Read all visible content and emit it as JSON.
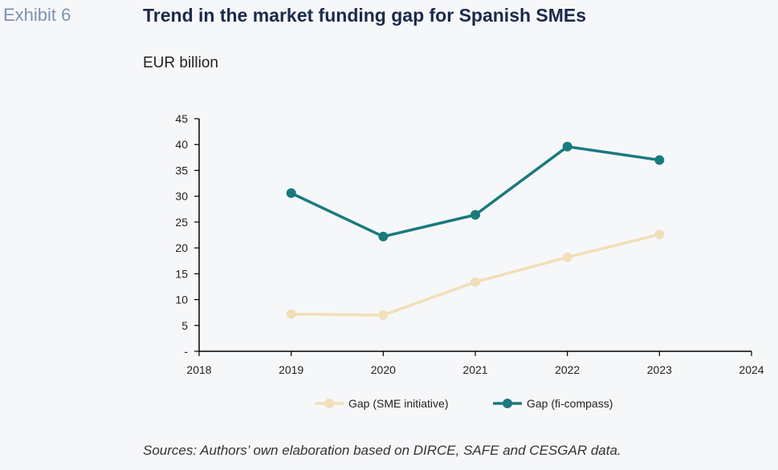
{
  "exhibit_label": "Exhibit 6",
  "source_note": "Sources: Authors’ own elaboration based on DIRCE, SAFE and CESGAR data.",
  "chart_data": {
    "type": "line",
    "title": "Trend in the market funding gap for Spanish SMEs",
    "ylabel": "EUR billion",
    "xlabel": "",
    "xlim": [
      2018,
      2024
    ],
    "ylim": [
      0,
      45
    ],
    "x_ticks": [
      2018,
      2019,
      2020,
      2021,
      2022,
      2023,
      2024
    ],
    "y_ticks": [
      0,
      5,
      10,
      15,
      20,
      25,
      30,
      35,
      40,
      45
    ],
    "y_tick_labels": [
      "-",
      "5",
      "10",
      "15",
      "20",
      "25",
      "30",
      "35",
      "40",
      "45"
    ],
    "grid": false,
    "legend_position": "bottom",
    "series": [
      {
        "name": "Gap (SME initiative)",
        "color": "#f0dfb8",
        "x": [
          2019,
          2020,
          2021,
          2022,
          2023
        ],
        "values": [
          7.2,
          7.0,
          13.4,
          18.2,
          22.6
        ]
      },
      {
        "name": "Gap (fi-compass)",
        "color": "#1a7a80",
        "x": [
          2019,
          2020,
          2021,
          2022,
          2023
        ],
        "values": [
          30.6,
          22.2,
          26.4,
          39.6,
          37.0
        ]
      }
    ]
  }
}
